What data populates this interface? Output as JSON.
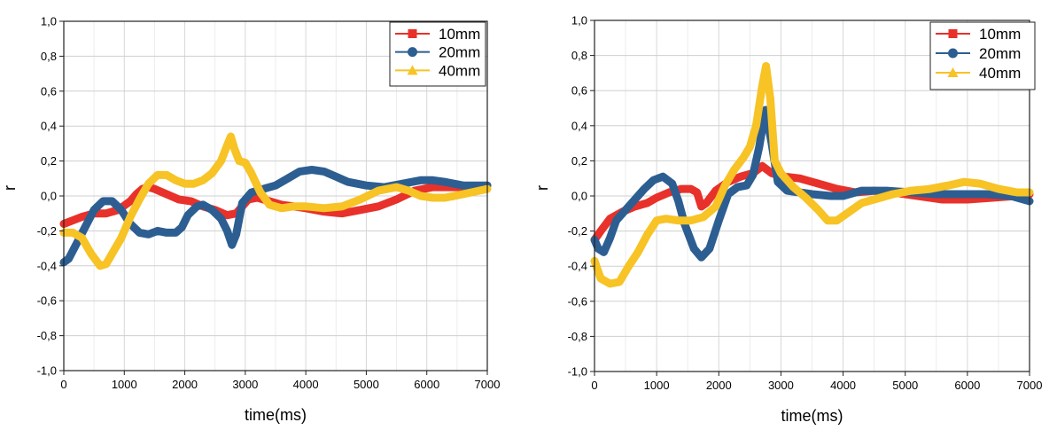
{
  "chart_data": [
    {
      "type": "line",
      "xlabel": "time(ms)",
      "ylabel": "r",
      "xlim": [
        0,
        7000
      ],
      "ylim": [
        -1.0,
        1.0
      ],
      "xticks": [
        0,
        1000,
        2000,
        3000,
        4000,
        5000,
        6000,
        7000
      ],
      "yticks": [
        "-1,0",
        "-0,8",
        "-0,6",
        "-0,4",
        "-0,2",
        "0,0",
        "0,2",
        "0,4",
        "0,6",
        "0,8",
        "1,0"
      ],
      "ytick_values": [
        -1.0,
        -0.8,
        -0.6,
        -0.4,
        -0.2,
        0.0,
        0.2,
        0.4,
        0.6,
        0.8,
        1.0
      ],
      "grid": true,
      "legend": "top-right",
      "series": [
        {
          "name": "10mm",
          "color": "#e8312a",
          "marker": "square",
          "points": [
            [
              0,
              -0.16
            ],
            [
              150,
              -0.14
            ],
            [
              300,
              -0.12
            ],
            [
              500,
              -0.1
            ],
            [
              700,
              -0.1
            ],
            [
              900,
              -0.08
            ],
            [
              1100,
              -0.03
            ],
            [
              1200,
              0.01
            ],
            [
              1300,
              0.04
            ],
            [
              1400,
              0.05
            ],
            [
              1500,
              0.04
            ],
            [
              1700,
              0.01
            ],
            [
              1900,
              -0.02
            ],
            [
              2100,
              -0.03
            ],
            [
              2300,
              -0.06
            ],
            [
              2500,
              -0.08
            ],
            [
              2700,
              -0.11
            ],
            [
              2850,
              -0.1
            ],
            [
              2950,
              -0.06
            ],
            [
              3050,
              -0.02
            ],
            [
              3200,
              -0.01
            ],
            [
              3400,
              -0.03
            ],
            [
              3600,
              -0.05
            ],
            [
              3800,
              -0.06
            ],
            [
              4000,
              -0.07
            ],
            [
              4300,
              -0.09
            ],
            [
              4600,
              -0.1
            ],
            [
              4900,
              -0.08
            ],
            [
              5200,
              -0.06
            ],
            [
              5500,
              -0.02
            ],
            [
              5800,
              0.03
            ],
            [
              6100,
              0.05
            ],
            [
              6400,
              0.05
            ],
            [
              6700,
              0.05
            ],
            [
              7000,
              0.06
            ]
          ]
        },
        {
          "name": "20mm",
          "color": "#2d5e91",
          "marker": "circle",
          "points": [
            [
              0,
              -0.38
            ],
            [
              80,
              -0.36
            ],
            [
              200,
              -0.28
            ],
            [
              350,
              -0.18
            ],
            [
              500,
              -0.08
            ],
            [
              650,
              -0.03
            ],
            [
              800,
              -0.03
            ],
            [
              950,
              -0.08
            ],
            [
              1100,
              -0.16
            ],
            [
              1250,
              -0.21
            ],
            [
              1400,
              -0.22
            ],
            [
              1550,
              -0.2
            ],
            [
              1700,
              -0.21
            ],
            [
              1850,
              -0.21
            ],
            [
              1950,
              -0.18
            ],
            [
              2050,
              -0.11
            ],
            [
              2200,
              -0.06
            ],
            [
              2300,
              -0.05
            ],
            [
              2450,
              -0.08
            ],
            [
              2600,
              -0.13
            ],
            [
              2700,
              -0.2
            ],
            [
              2780,
              -0.28
            ],
            [
              2850,
              -0.22
            ],
            [
              2950,
              -0.04
            ],
            [
              3100,
              0.02
            ],
            [
              3300,
              0.04
            ],
            [
              3500,
              0.06
            ],
            [
              3700,
              0.1
            ],
            [
              3900,
              0.14
            ],
            [
              4100,
              0.15
            ],
            [
              4300,
              0.14
            ],
            [
              4500,
              0.11
            ],
            [
              4700,
              0.08
            ],
            [
              5000,
              0.06
            ],
            [
              5300,
              0.05
            ],
            [
              5600,
              0.07
            ],
            [
              5900,
              0.09
            ],
            [
              6100,
              0.09
            ],
            [
              6300,
              0.08
            ],
            [
              6600,
              0.06
            ],
            [
              7000,
              0.06
            ]
          ]
        },
        {
          "name": "40mm",
          "color": "#f7c325",
          "marker": "triangle",
          "points": [
            [
              0,
              -0.21
            ],
            [
              150,
              -0.21
            ],
            [
              300,
              -0.24
            ],
            [
              450,
              -0.33
            ],
            [
              600,
              -0.4
            ],
            [
              700,
              -0.39
            ],
            [
              800,
              -0.33
            ],
            [
              950,
              -0.24
            ],
            [
              1100,
              -0.12
            ],
            [
              1250,
              -0.02
            ],
            [
              1400,
              0.07
            ],
            [
              1550,
              0.12
            ],
            [
              1700,
              0.12
            ],
            [
              1850,
              0.09
            ],
            [
              2000,
              0.07
            ],
            [
              2150,
              0.07
            ],
            [
              2300,
              0.09
            ],
            [
              2450,
              0.13
            ],
            [
              2600,
              0.2
            ],
            [
              2700,
              0.29
            ],
            [
              2760,
              0.34
            ],
            [
              2820,
              0.27
            ],
            [
              2900,
              0.2
            ],
            [
              3000,
              0.19
            ],
            [
              3100,
              0.13
            ],
            [
              3250,
              0.02
            ],
            [
              3400,
              -0.05
            ],
            [
              3600,
              -0.07
            ],
            [
              3800,
              -0.06
            ],
            [
              4000,
              -0.06
            ],
            [
              4300,
              -0.07
            ],
            [
              4600,
              -0.06
            ],
            [
              4900,
              -0.02
            ],
            [
              5200,
              0.03
            ],
            [
              5500,
              0.05
            ],
            [
              5700,
              0.03
            ],
            [
              5900,
              0.0
            ],
            [
              6100,
              -0.01
            ],
            [
              6300,
              -0.01
            ],
            [
              6600,
              0.01
            ],
            [
              7000,
              0.04
            ]
          ]
        }
      ]
    },
    {
      "type": "line",
      "xlabel": "time(ms)",
      "ylabel": "r",
      "xlim": [
        0,
        7000
      ],
      "ylim": [
        -1.0,
        1.0
      ],
      "xticks": [
        0,
        1000,
        2000,
        3000,
        4000,
        5000,
        6000,
        7000
      ],
      "yticks": [
        "-1,0",
        "-0,8",
        "-0,6",
        "-0,4",
        "-0,2",
        "0,0",
        "0,2",
        "0,4",
        "0,6",
        "0,8",
        "1,0"
      ],
      "ytick_values": [
        -1.0,
        -0.8,
        -0.6,
        -0.4,
        -0.2,
        0.0,
        0.2,
        0.4,
        0.6,
        0.8,
        1.0
      ],
      "grid": true,
      "legend": "top-right",
      "series": [
        {
          "name": "10mm",
          "color": "#e8312a",
          "marker": "square",
          "points": [
            [
              0,
              -0.25
            ],
            [
              100,
              -0.2
            ],
            [
              250,
              -0.13
            ],
            [
              450,
              -0.09
            ],
            [
              650,
              -0.06
            ],
            [
              850,
              -0.04
            ],
            [
              1000,
              -0.01
            ],
            [
              1200,
              0.02
            ],
            [
              1400,
              0.04
            ],
            [
              1550,
              0.04
            ],
            [
              1650,
              0.02
            ],
            [
              1720,
              -0.06
            ],
            [
              1800,
              -0.04
            ],
            [
              1950,
              0.03
            ],
            [
              2150,
              0.08
            ],
            [
              2350,
              0.11
            ],
            [
              2550,
              0.13
            ],
            [
              2700,
              0.17
            ],
            [
              2850,
              0.13
            ],
            [
              3050,
              0.11
            ],
            [
              3300,
              0.1
            ],
            [
              3600,
              0.07
            ],
            [
              3900,
              0.04
            ],
            [
              4200,
              0.02
            ],
            [
              4500,
              0.03
            ],
            [
              4800,
              0.02
            ],
            [
              5200,
              0.0
            ],
            [
              5600,
              -0.02
            ],
            [
              6000,
              -0.02
            ],
            [
              6400,
              -0.01
            ],
            [
              6800,
              0.0
            ],
            [
              7000,
              0.01
            ]
          ]
        },
        {
          "name": "20mm",
          "color": "#2d5e91",
          "marker": "circle",
          "points": [
            [
              0,
              -0.25
            ],
            [
              60,
              -0.3
            ],
            [
              150,
              -0.32
            ],
            [
              250,
              -0.24
            ],
            [
              350,
              -0.14
            ],
            [
              500,
              -0.08
            ],
            [
              650,
              -0.02
            ],
            [
              800,
              0.04
            ],
            [
              950,
              0.09
            ],
            [
              1100,
              0.11
            ],
            [
              1250,
              0.07
            ],
            [
              1350,
              -0.03
            ],
            [
              1450,
              -0.16
            ],
            [
              1600,
              -0.3
            ],
            [
              1720,
              -0.35
            ],
            [
              1850,
              -0.3
            ],
            [
              2000,
              -0.14
            ],
            [
              2150,
              0.01
            ],
            [
              2300,
              0.05
            ],
            [
              2450,
              0.06
            ],
            [
              2550,
              0.12
            ],
            [
              2650,
              0.28
            ],
            [
              2750,
              0.49
            ],
            [
              2850,
              0.3
            ],
            [
              2950,
              0.08
            ],
            [
              3100,
              0.03
            ],
            [
              3300,
              0.02
            ],
            [
              3500,
              0.01
            ],
            [
              3800,
              0.0
            ],
            [
              4000,
              0.0
            ],
            [
              4300,
              0.03
            ],
            [
              4700,
              0.03
            ],
            [
              5100,
              0.02
            ],
            [
              5500,
              0.01
            ],
            [
              6000,
              0.01
            ],
            [
              6300,
              0.01
            ],
            [
              6700,
              0.0
            ],
            [
              7000,
              -0.03
            ]
          ]
        },
        {
          "name": "40mm",
          "color": "#f7c325",
          "marker": "triangle",
          "points": [
            [
              0,
              -0.37
            ],
            [
              100,
              -0.47
            ],
            [
              250,
              -0.5
            ],
            [
              400,
              -0.49
            ],
            [
              550,
              -0.4
            ],
            [
              700,
              -0.32
            ],
            [
              850,
              -0.22
            ],
            [
              1000,
              -0.14
            ],
            [
              1150,
              -0.13
            ],
            [
              1350,
              -0.14
            ],
            [
              1550,
              -0.14
            ],
            [
              1750,
              -0.12
            ],
            [
              1950,
              -0.06
            ],
            [
              2100,
              0.06
            ],
            [
              2250,
              0.15
            ],
            [
              2400,
              0.22
            ],
            [
              2500,
              0.28
            ],
            [
              2600,
              0.4
            ],
            [
              2700,
              0.63
            ],
            [
              2760,
              0.74
            ],
            [
              2830,
              0.55
            ],
            [
              2900,
              0.2
            ],
            [
              3000,
              0.13
            ],
            [
              3200,
              0.05
            ],
            [
              3400,
              -0.01
            ],
            [
              3600,
              -0.08
            ],
            [
              3750,
              -0.14
            ],
            [
              3900,
              -0.14
            ],
            [
              4100,
              -0.09
            ],
            [
              4300,
              -0.04
            ],
            [
              4500,
              -0.02
            ],
            [
              4800,
              0.01
            ],
            [
              5100,
              0.03
            ],
            [
              5400,
              0.04
            ],
            [
              5700,
              0.06
            ],
            [
              5950,
              0.08
            ],
            [
              6200,
              0.07
            ],
            [
              6500,
              0.04
            ],
            [
              6800,
              0.02
            ],
            [
              7000,
              0.02
            ]
          ]
        }
      ]
    }
  ]
}
